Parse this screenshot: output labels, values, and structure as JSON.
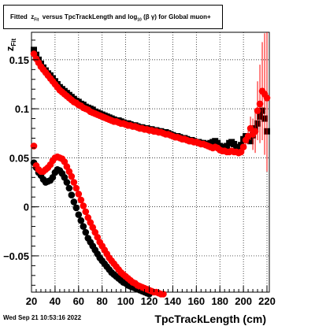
{
  "title": {
    "prefix": "Fitted",
    "var": "z",
    "var_sub": "Fit",
    "mid": "versus TpcTrackLength and log",
    "log_sub": "10",
    "beta_gamma": "(β γ)",
    "suffix": "for Global muon+"
  },
  "timestamp": "Wed Sep 21 10:53:16 2022",
  "chart_data": {
    "type": "scatter",
    "title": "Fitted zFit versus TpcTrackLength and log10(β γ) for Global muon+",
    "xlabel": "TpcTrackLength (cm)",
    "ylabel": "z_Fit",
    "xlim": [
      20,
      222
    ],
    "ylim": [
      -0.087,
      0.178
    ],
    "xticks": [
      20,
      40,
      60,
      80,
      100,
      120,
      140,
      160,
      180,
      200,
      220
    ],
    "yticks": [
      -0.05,
      0,
      0.05,
      0.1,
      0.15
    ],
    "ytick_labels": [
      "−0.05",
      "0",
      "0.05",
      "0.1",
      "0.15"
    ],
    "grid": true,
    "colors": {
      "black_series": "#000000",
      "red_series": "#ff0000"
    },
    "series": [
      {
        "color": "#000000",
        "marker": "square",
        "x": [
          22,
          24,
          26,
          28,
          30,
          32,
          34,
          36,
          38,
          40,
          42,
          44,
          46,
          48,
          50,
          52,
          54,
          56,
          58,
          60,
          62,
          64,
          66,
          68,
          70,
          72,
          74,
          76,
          78,
          80,
          82,
          84,
          86,
          88,
          90,
          92,
          94,
          96,
          98,
          100,
          102,
          104,
          106,
          108,
          110,
          112,
          114,
          116,
          118,
          120,
          122,
          124,
          126,
          128,
          130,
          132,
          134,
          136,
          138,
          140,
          142,
          144,
          146,
          148,
          150,
          152,
          154,
          156,
          158,
          160,
          162,
          164,
          166,
          168,
          170,
          172,
          174,
          176,
          178,
          180,
          182,
          184,
          186,
          188,
          190,
          192,
          194,
          196,
          198,
          200,
          202,
          204,
          206,
          208,
          210,
          212,
          214,
          216,
          218,
          220
        ],
        "y": [
          0.16,
          0.155,
          0.15,
          0.146,
          0.142,
          0.139,
          0.136,
          0.134,
          0.131,
          0.128,
          0.125,
          0.122,
          0.12,
          0.118,
          0.116,
          0.114,
          0.112,
          0.11,
          0.108,
          0.107,
          0.105,
          0.104,
          0.102,
          0.101,
          0.1,
          0.099,
          0.097,
          0.096,
          0.095,
          0.094,
          0.093,
          0.092,
          0.091,
          0.09,
          0.089,
          0.088,
          0.088,
          0.087,
          0.086,
          0.085,
          0.085,
          0.084,
          0.083,
          0.083,
          0.082,
          0.081,
          0.081,
          0.08,
          0.08,
          0.079,
          0.079,
          0.078,
          0.078,
          0.077,
          0.077,
          0.076,
          0.076,
          0.075,
          0.074,
          0.073,
          0.072,
          0.072,
          0.071,
          0.07,
          0.07,
          0.069,
          0.068,
          0.068,
          0.067,
          0.066,
          0.066,
          0.065,
          0.065,
          0.064,
          0.064,
          0.065,
          0.066,
          0.067,
          0.065,
          0.062,
          0.061,
          0.06,
          0.062,
          0.065,
          0.066,
          0.064,
          0.061,
          0.06,
          0.063,
          0.069,
          0.072,
          0.068,
          0.067,
          0.073,
          0.08,
          0.085,
          0.092,
          0.098,
          0.09,
          0.077
        ]
      },
      {
        "color": "#ff0000",
        "marker": "circle",
        "x": [
          22,
          24,
          26,
          28,
          30,
          32,
          34,
          36,
          38,
          40,
          42,
          44,
          46,
          48,
          50,
          52,
          54,
          56,
          58,
          60,
          62,
          64,
          66,
          68,
          70,
          72,
          74,
          76,
          78,
          80,
          82,
          84,
          86,
          88,
          90,
          92,
          94,
          96,
          98,
          100,
          102,
          104,
          106,
          108,
          110,
          112,
          114,
          116,
          118,
          120,
          122,
          124,
          126,
          128,
          130,
          132,
          134,
          136,
          138,
          140,
          142,
          144,
          146,
          148,
          150,
          152,
          154,
          156,
          158,
          160,
          162,
          164,
          166,
          168,
          170,
          172,
          174,
          176,
          178,
          180,
          182,
          184,
          186,
          188,
          190,
          192,
          194,
          196,
          198,
          200,
          202,
          204,
          206,
          208,
          210,
          212,
          214,
          216,
          218,
          220
        ],
        "y": [
          0.156,
          0.151,
          0.147,
          0.143,
          0.14,
          0.137,
          0.134,
          0.131,
          0.128,
          0.125,
          0.122,
          0.119,
          0.117,
          0.115,
          0.113,
          0.111,
          0.109,
          0.107,
          0.106,
          0.104,
          0.103,
          0.101,
          0.1,
          0.099,
          0.097,
          0.096,
          0.095,
          0.094,
          0.093,
          0.092,
          0.091,
          0.09,
          0.089,
          0.088,
          0.087,
          0.087,
          0.086,
          0.085,
          0.085,
          0.084,
          0.083,
          0.083,
          0.082,
          0.082,
          0.081,
          0.08,
          0.08,
          0.079,
          0.079,
          0.078,
          0.078,
          0.077,
          0.077,
          0.076,
          0.076,
          0.075,
          0.074,
          0.074,
          0.073,
          0.072,
          0.071,
          0.071,
          0.07,
          0.069,
          0.069,
          0.068,
          0.067,
          0.067,
          0.066,
          0.066,
          0.065,
          0.064,
          0.064,
          0.063,
          0.062,
          0.061,
          0.06,
          0.061,
          0.06,
          0.058,
          0.057,
          0.057,
          0.056,
          0.056,
          0.057,
          0.056,
          0.056,
          0.055,
          0.056,
          0.061,
          0.068,
          0.072,
          0.08,
          0.074,
          0.077,
          0.098,
          0.105,
          0.118,
          0.115,
          0.111
        ],
        "error": [
          0,
          0,
          0,
          0,
          0,
          0,
          0,
          0,
          0,
          0,
          0,
          0,
          0,
          0,
          0,
          0,
          0,
          0,
          0,
          0,
          0,
          0,
          0,
          0,
          0,
          0,
          0,
          0,
          0,
          0,
          0,
          0,
          0,
          0,
          0,
          0,
          0,
          0,
          0,
          0,
          0,
          0,
          0,
          0,
          0,
          0,
          0,
          0,
          0,
          0,
          0,
          0,
          0,
          0,
          0,
          0,
          0,
          0,
          0,
          0,
          0,
          0,
          0,
          0,
          0,
          0,
          0,
          0,
          0,
          0,
          0,
          0,
          0,
          0,
          0,
          0,
          0,
          0,
          0,
          0,
          0,
          0,
          0,
          0,
          0,
          0,
          0,
          0,
          0,
          0.003,
          0.006,
          0.008,
          0.012,
          0.016,
          0.022,
          0.03,
          0.04,
          0.05,
          0.062,
          0.075
        ]
      },
      {
        "color": "#000000",
        "marker": "circle",
        "x": [
          22,
          24,
          26,
          28,
          30,
          32,
          34,
          36,
          38,
          40,
          42,
          44,
          46,
          48,
          50,
          52,
          54,
          56,
          58,
          60,
          62,
          64,
          66,
          68,
          70,
          72,
          74,
          76,
          78,
          80,
          82,
          84,
          86,
          88,
          90,
          92,
          94,
          96,
          98,
          100,
          102,
          104,
          106,
          108,
          110,
          112,
          114,
          116,
          118,
          120
        ],
        "y": [
          0.045,
          0.04,
          0.035,
          0.032,
          0.028,
          0.025,
          0.026,
          0.027,
          0.03,
          0.035,
          0.038,
          0.037,
          0.034,
          0.03,
          0.025,
          0.019,
          0.012,
          0.005,
          -0.001,
          -0.008,
          -0.014,
          -0.02,
          -0.026,
          -0.032,
          -0.036,
          -0.04,
          -0.044,
          -0.048,
          -0.052,
          -0.055,
          -0.058,
          -0.061,
          -0.064,
          -0.067,
          -0.069,
          -0.071,
          -0.073,
          -0.075,
          -0.077,
          -0.078,
          -0.08,
          -0.081,
          -0.082,
          -0.083,
          -0.084,
          -0.085,
          -0.086,
          -0.087,
          -0.088,
          -0.089
        ]
      },
      {
        "color": "#ff0000",
        "marker": "circle",
        "x": [
          22,
          24,
          26,
          28,
          30,
          32,
          34,
          36,
          38,
          40,
          42,
          44,
          46,
          48,
          50,
          52,
          54,
          56,
          58,
          60,
          62,
          64,
          66,
          68,
          70,
          72,
          74,
          76,
          78,
          80,
          82,
          84,
          86,
          88,
          90,
          92,
          94,
          96,
          98,
          100,
          102,
          104,
          106,
          108,
          110,
          112,
          114,
          116,
          118,
          120,
          122,
          124,
          126,
          128,
          130,
          132,
          134
        ],
        "y": [
          0.062,
          0.042,
          0.038,
          0.036,
          0.036,
          0.038,
          0.04,
          0.043,
          0.047,
          0.05,
          0.051,
          0.05,
          0.049,
          0.046,
          0.041,
          0.036,
          0.031,
          0.025,
          0.019,
          0.013,
          0.007,
          0.001,
          -0.005,
          -0.011,
          -0.016,
          -0.021,
          -0.026,
          -0.031,
          -0.036,
          -0.04,
          -0.044,
          -0.048,
          -0.052,
          -0.055,
          -0.058,
          -0.061,
          -0.064,
          -0.067,
          -0.069,
          -0.071,
          -0.073,
          -0.075,
          -0.077,
          -0.078,
          -0.08,
          -0.081,
          -0.082,
          -0.083,
          -0.084,
          -0.085,
          -0.086,
          -0.087,
          -0.087,
          -0.088,
          -0.089,
          -0.089,
          -0.09
        ]
      }
    ]
  }
}
